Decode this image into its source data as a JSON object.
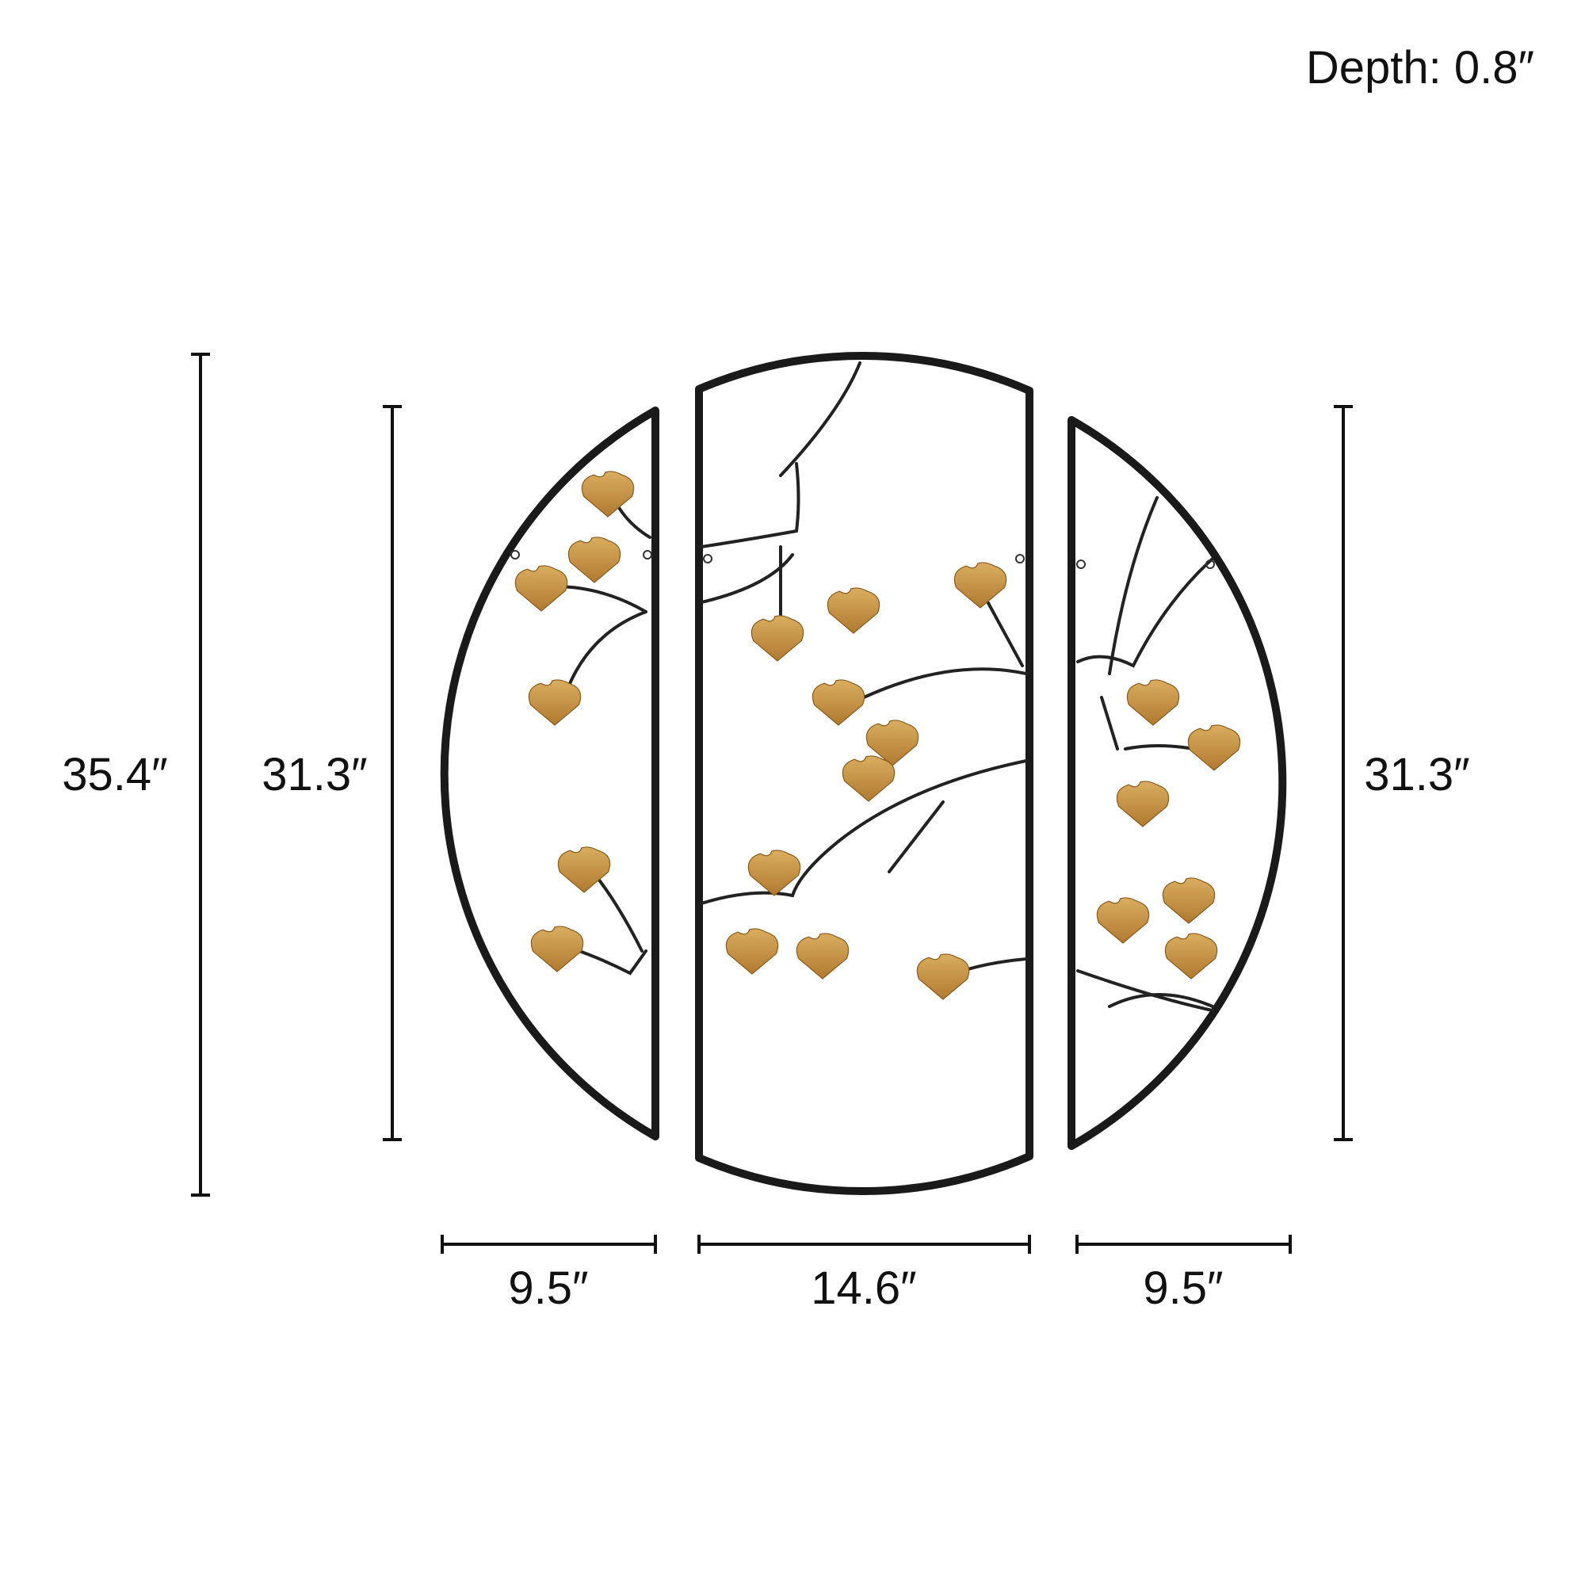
{
  "depth_label": "Depth: 0.8″",
  "dimensions": {
    "overall_height": "35.4″",
    "left_panel_height": "31.3″",
    "right_panel_height": "31.3″",
    "left_panel_width": "9.5″",
    "center_panel_width": "14.6″",
    "right_panel_width": "9.5″"
  },
  "colors": {
    "frame": "#1a1a1a",
    "leaf": "#c99a4e",
    "background": "#ffffff"
  }
}
